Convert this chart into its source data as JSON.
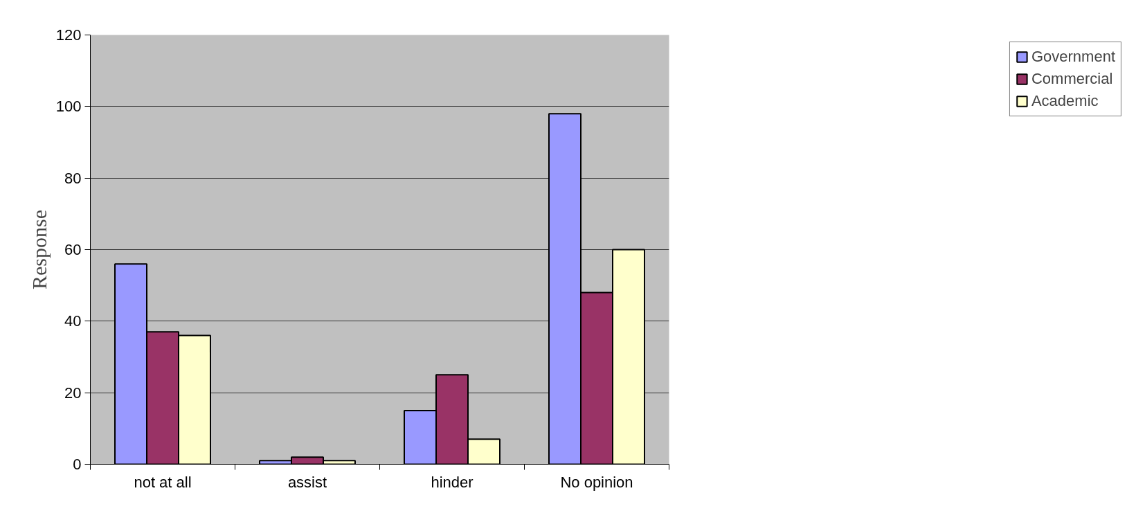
{
  "chart_data": {
    "type": "bar",
    "ylabel": "Response",
    "categories": [
      "not at all",
      "assist",
      "hinder",
      "No opinion"
    ],
    "series": [
      {
        "name": "Government",
        "color": "#9999ff",
        "values": [
          56,
          1,
          15,
          98
        ]
      },
      {
        "name": "Commercial",
        "color": "#993366",
        "values": [
          37,
          2,
          25,
          48
        ]
      },
      {
        "name": "Academic",
        "color": "#ffffcc",
        "values": [
          36,
          1,
          7,
          60
        ]
      }
    ],
    "ylim": [
      0,
      120
    ],
    "yticks": [
      0,
      20,
      40,
      60,
      80,
      100,
      120
    ],
    "grid": "y",
    "legend": "right"
  }
}
